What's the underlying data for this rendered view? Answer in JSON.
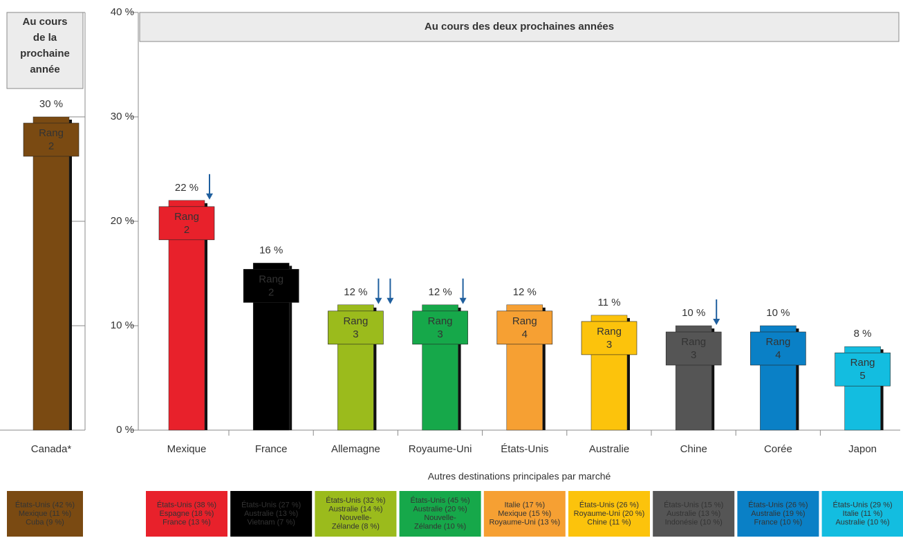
{
  "chart_data": [
    {
      "type": "bar",
      "header": [
        "Au cours",
        "de la",
        "prochaine",
        "année"
      ],
      "categories": [
        "Canada*"
      ],
      "values": [
        30
      ],
      "value_labels": [
        "30 %"
      ],
      "colors": [
        "#7a4a12"
      ],
      "text_colors": [
        "#ffffff"
      ],
      "rank_label": "Rang",
      "ranks": [
        2
      ],
      "down_arrows": [
        0
      ],
      "ylim": [
        0,
        40
      ],
      "yticks": [
        0,
        10,
        20,
        30,
        40
      ],
      "destinations": [
        [
          "États-Unis (42 %)",
          "Mexique (11 %)",
          "Cuba (9 %)"
        ]
      ]
    },
    {
      "type": "bar",
      "header": [
        "Au cours des deux prochaines années"
      ],
      "categories": [
        "Mexique",
        "France",
        "Allemagne",
        "Royaume-Uni",
        "États-Unis",
        "Australie",
        "Chine",
        "Corée",
        "Japon"
      ],
      "values": [
        22,
        16,
        12,
        12,
        12,
        11,
        10,
        10,
        8
      ],
      "value_labels": [
        "22 %",
        "16 %",
        "12 %",
        "12 %",
        "12 %",
        "11 %",
        "10 %",
        "10 %",
        "8 %"
      ],
      "colors": [
        "#e8212b",
        "#000000",
        "#9bbb1c",
        "#16a84a",
        "#f6a033",
        "#fcc30c",
        "#555555",
        "#0a80c6",
        "#13bde0"
      ],
      "text_colors": [
        "#ffffff",
        "#ffffff",
        "#ffffff",
        "#ffffff",
        "#ffffff",
        "#333333",
        "#ffffff",
        "#ffffff",
        "#ffffff"
      ],
      "rank_label": "Rang",
      "ranks": [
        2,
        2,
        3,
        3,
        4,
        3,
        3,
        4,
        5
      ],
      "down_arrows": [
        1,
        0,
        2,
        1,
        0,
        0,
        1,
        0,
        0
      ],
      "ylim": [
        0,
        40
      ],
      "yticks": [
        {
          "value": 0,
          "label": "0 %"
        },
        {
          "value": 10,
          "label": "10 %"
        },
        {
          "value": 20,
          "label": "20 %"
        },
        {
          "value": 30,
          "label": "30 %"
        },
        {
          "value": 40,
          "label": "40 %"
        }
      ],
      "destinations_title": "Autres destinations principales par marché",
      "destinations": [
        [
          "États-Unis (38 %)",
          "Espagne (18 %)",
          "France (13 %)"
        ],
        [
          "États-Unis (27 %)",
          "Australie (13 %)",
          "Vietnam (7 %)"
        ],
        [
          "États-Unis (32 %)",
          "Australie (14 %)",
          "Nouvelle-",
          "Zélande (8 %)"
        ],
        [
          "États-Unis (45 %)",
          "Australie (20 %)",
          "Nouvelle-",
          "Zélande (10 %)"
        ],
        [
          "Italie (17 %)",
          "Mexique (15 %)",
          "Royaume-Uni (13 %)"
        ],
        [
          "États-Unis (26 %)",
          "Royaume-Uni (20 %)",
          "Chine (11 %)"
        ],
        [
          "États-Unis (15 %)",
          "Australie (13 %)",
          "Indonésie (10 %)"
        ],
        [
          "États-Unis (26 %)",
          "Australie (19 %)",
          "France (10 %)"
        ],
        [
          "États-Unis (29 %)",
          "Italie (11 %)",
          "Australie (10 %)"
        ]
      ]
    }
  ]
}
